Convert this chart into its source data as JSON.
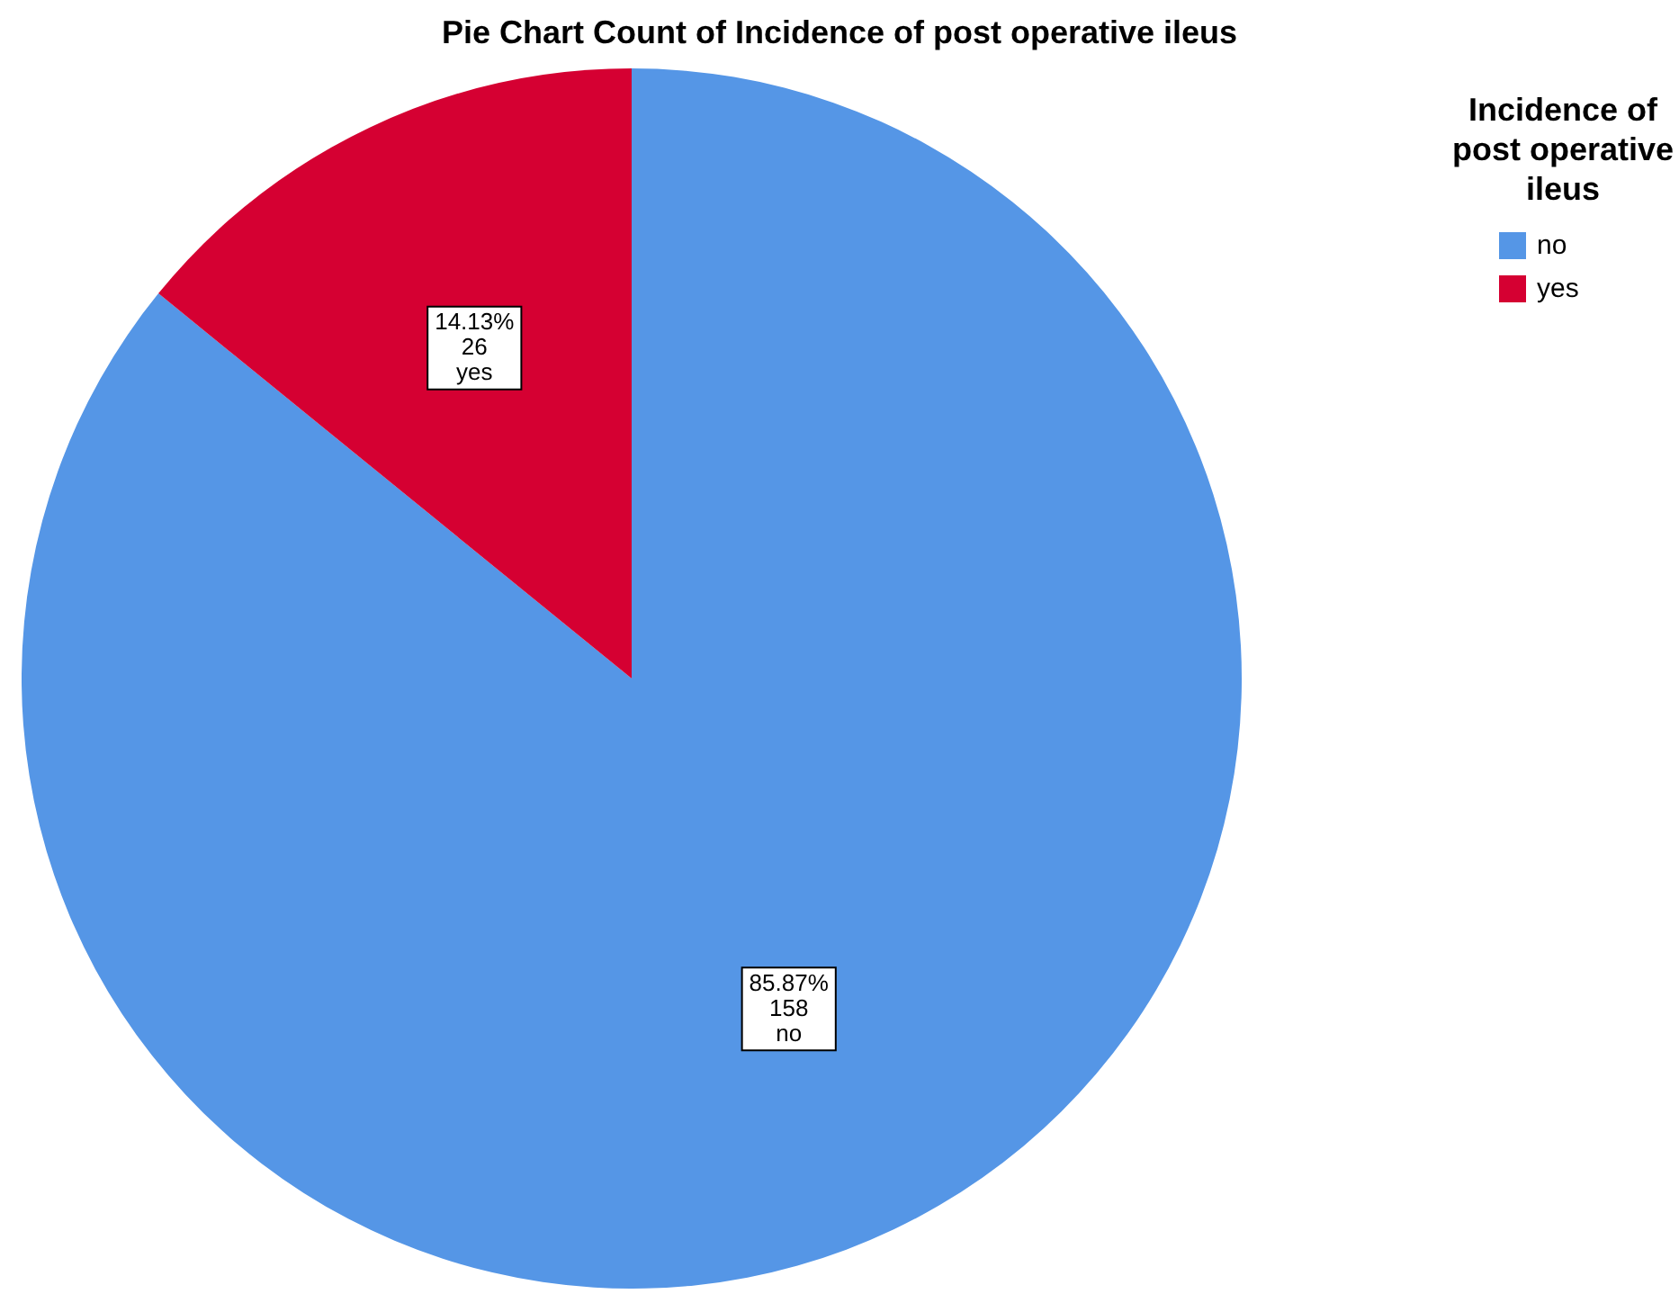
{
  "chart_data": {
    "type": "pie",
    "title": "Pie Chart Count of Incidence of post operative ileus",
    "legend_title": "Incidence of post operative ileus",
    "categories": [
      "no",
      "yes"
    ],
    "values": [
      158,
      26
    ],
    "colors": [
      "#5596e6",
      "#d50032"
    ],
    "value_labels": [
      "85.87%\n158\nno",
      "14.13%\n26\nyes"
    ],
    "legend": "top right"
  }
}
